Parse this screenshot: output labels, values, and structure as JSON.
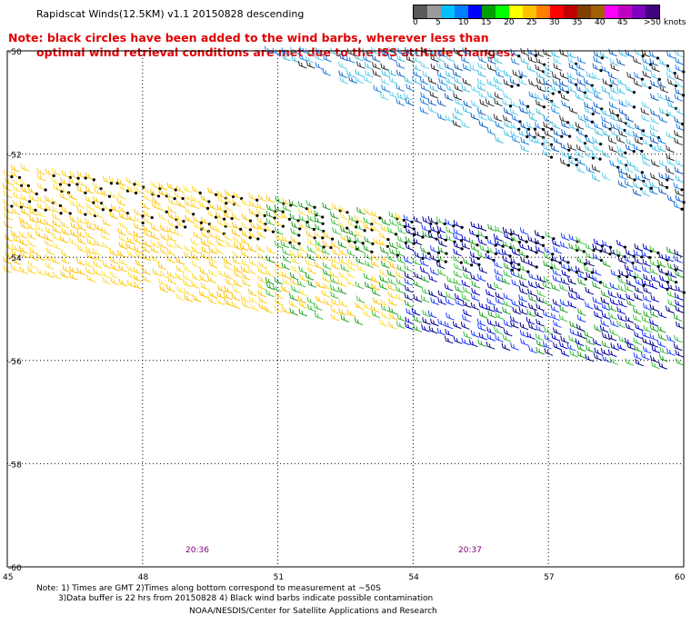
{
  "title": "Rapidscat Winds(12.5KM) v1.1 20150828 descending",
  "note_line1": "Note: black circles have been added to the wind barbs, wherever less than",
  "note_line2": "optimal wind retrieval conditions are met due to the ISS attitude changes.",
  "colorbar": {
    "labels": [
      "0",
      "5",
      "10",
      "15",
      "20",
      "25",
      "30",
      "35",
      "40",
      "45",
      ">50 knots"
    ],
    "colors": [
      "#5a5a5a",
      "#9a9a9a",
      "#00c0ff",
      "#0080ff",
      "#0000ff",
      "#00a000",
      "#00ff00",
      "#ffff00",
      "#ffc000",
      "#ff8000",
      "#ff0000",
      "#c00000",
      "#804000",
      "#a06000",
      "#ff00ff",
      "#c000c0",
      "#8000c0",
      "#400080"
    ]
  },
  "y_axis": [
    "-50",
    "-52",
    "-54",
    "-56",
    "-58",
    "-60"
  ],
  "x_axis": [
    "45",
    "48",
    "51",
    "54",
    "57",
    "60"
  ],
  "time_labels": [
    "20:36",
    "20:37"
  ],
  "footer": {
    "line1": "Note: 1) Times are GMT 2)Times along bottom correspond to measurement at ~50S",
    "line2": "3)Data buffer is 22 hrs from 20150828 4) Black wind barbs indicate possible contamination",
    "credit": "NOAA/NESDIS/Center for Satellite Applications and Research"
  },
  "swaths": [
    {
      "name": "north-swath",
      "colors": [
        "#40c0e0",
        "#60d0f0",
        "#2080e0",
        "#1060c0",
        "#303030"
      ]
    },
    {
      "name": "south-swath",
      "colors": [
        "#ffe040",
        "#ffd020",
        "#ffc000",
        "#20a020",
        "#40c040",
        "#0000c0",
        "#2040ff",
        "#000080"
      ]
    }
  ]
}
